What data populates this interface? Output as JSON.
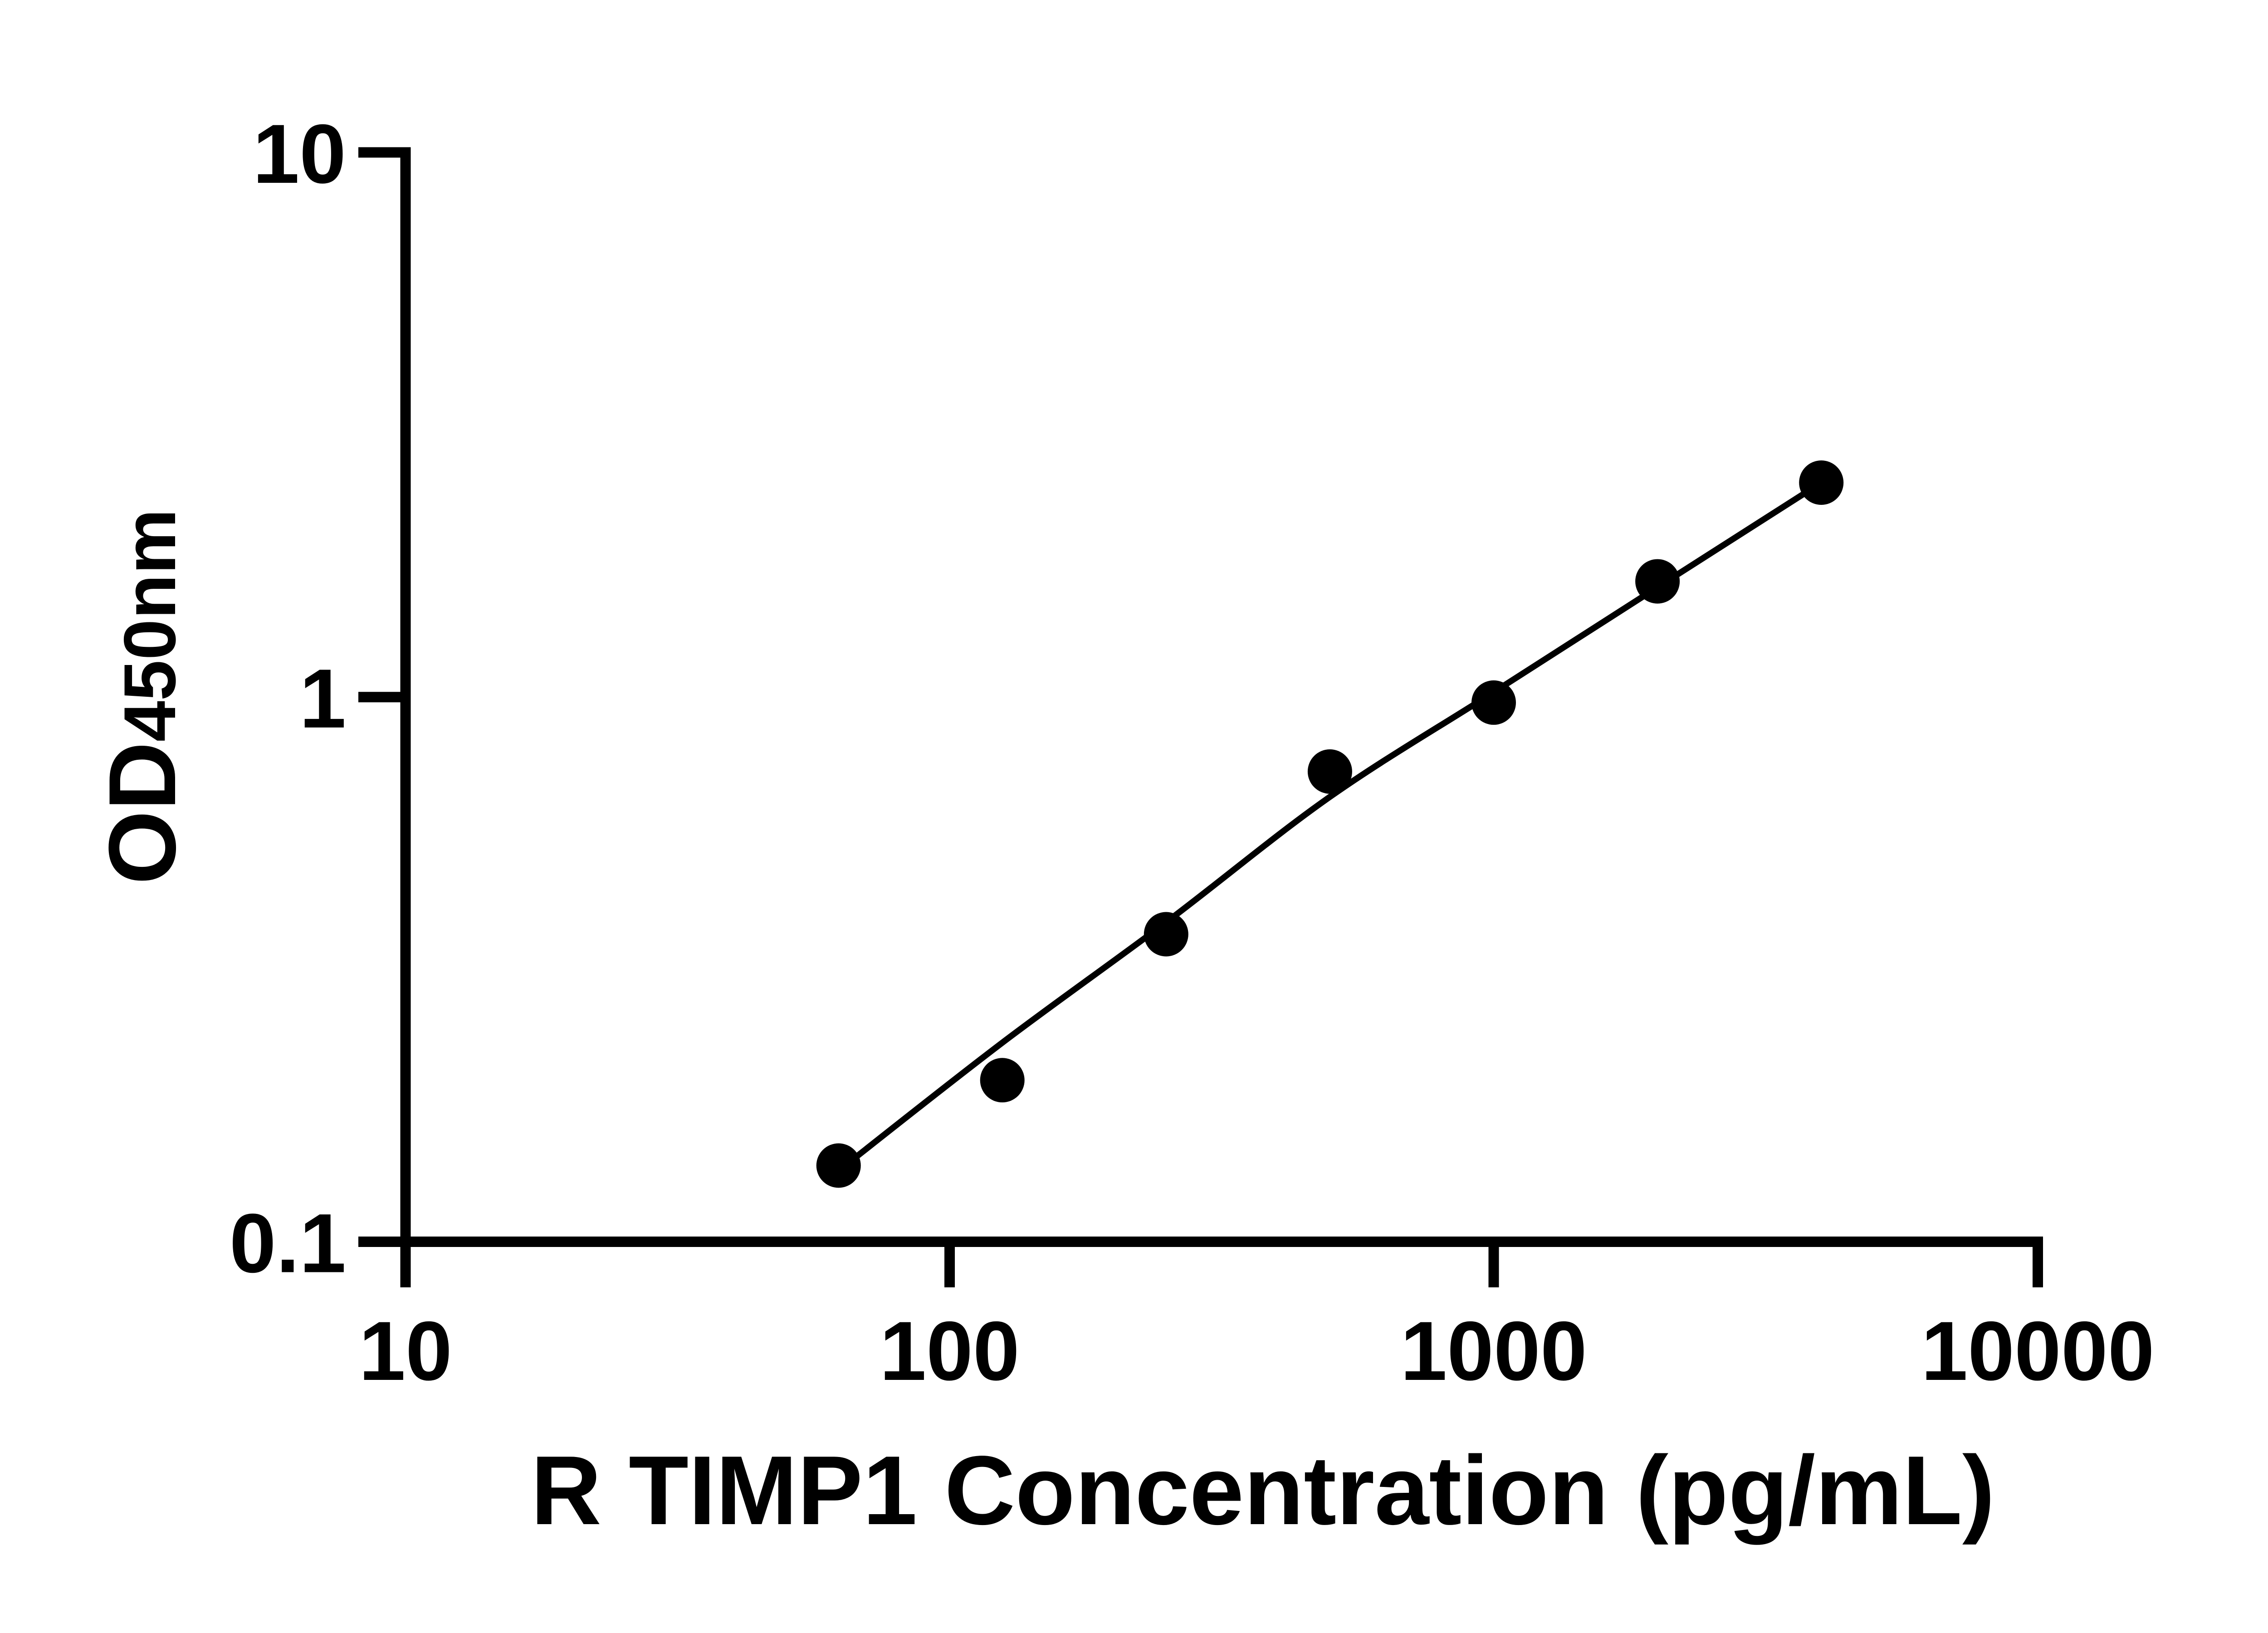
{
  "chart_data": {
    "type": "scatter",
    "title": "",
    "xlabel": "R TIMP1 Concentration (pg/mL)",
    "ylabel_main": "OD",
    "ylabel_sub": "450nm",
    "x_scale": "log",
    "y_scale": "log",
    "xlim": [
      10,
      10000
    ],
    "ylim": [
      0.1,
      10
    ],
    "grid": false,
    "legend": "none",
    "x_ticks": [
      {
        "value": 10,
        "label": "10"
      },
      {
        "value": 100,
        "label": "100"
      },
      {
        "value": 1000,
        "label": "1000"
      },
      {
        "value": 10000,
        "label": "10000"
      }
    ],
    "y_ticks": [
      {
        "value": 10,
        "label": "10"
      },
      {
        "value": 1,
        "label": "1"
      },
      {
        "value": 0.1,
        "label": "0.1"
      }
    ],
    "series": [
      {
        "name": "standards",
        "type": "scatter",
        "marker": "filled-circle",
        "color": "#000000",
        "x": [
          62.5,
          125,
          250,
          500,
          1000,
          2000,
          4000
        ],
        "od": [
          0.138,
          0.198,
          0.367,
          0.73,
          0.977,
          1.631,
          2.476
        ]
      },
      {
        "name": "fit-curve",
        "type": "line",
        "color": "#000000",
        "x": [
          62.5,
          125,
          250,
          500,
          1000,
          2000,
          4000
        ],
        "od": [
          0.135,
          0.232,
          0.386,
          0.656,
          1.021,
          1.591,
          2.476
        ]
      }
    ]
  },
  "colors": {
    "background": "#ffffff",
    "foreground": "#000000"
  }
}
